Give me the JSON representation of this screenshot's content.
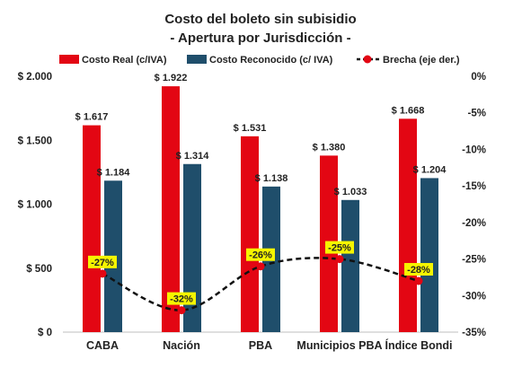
{
  "chart_data": {
    "type": "bar",
    "title": "Costo del boleto sin subisidio",
    "subtitle": "- Apertura por Jurisdicción -",
    "categories": [
      "CABA",
      "Nación",
      "PBA",
      "Municipios PBA",
      "Índice Bondi"
    ],
    "series": [
      {
        "name": "Costo Real (c/IVA)",
        "type": "bar",
        "axis": "left",
        "color": "#e30613",
        "values": [
          1617,
          1922,
          1531,
          1380,
          1668
        ],
        "labels": [
          "$ 1.617",
          "$ 1.922",
          "$ 1.531",
          "$ 1.380",
          "$ 1.668"
        ]
      },
      {
        "name": "Costo Reconocido (c/ IVA)",
        "type": "bar",
        "axis": "left",
        "color": "#1f4e6b",
        "values": [
          1184,
          1314,
          1138,
          1033,
          1204
        ],
        "labels": [
          "$ 1.184",
          "$ 1.314",
          "$ 1.138",
          "$ 1.033",
          "$ 1.204"
        ]
      },
      {
        "name": "Brecha (eje der.)",
        "type": "line",
        "axis": "right",
        "color": "#111111",
        "marker_color": "#e30613",
        "label_bg": "#f5f500",
        "values": [
          -27,
          -32,
          -26,
          -25,
          -28
        ],
        "labels": [
          "-27%",
          "-32%",
          "-26%",
          "-25%",
          "-28%"
        ]
      }
    ],
    "y_left": {
      "min": 0,
      "max": 2000,
      "ticks": [
        0,
        500,
        1000,
        1500,
        2000
      ],
      "tick_labels": [
        "$ 0",
        "$ 500",
        "$ 1.000",
        "$ 1.500",
        "$ 2.000"
      ]
    },
    "y_right": {
      "min": -35,
      "max": 0,
      "ticks": [
        0,
        -5,
        -10,
        -15,
        -20,
        -25,
        -30,
        -35
      ],
      "tick_labels": [
        "0%",
        "-5%",
        "-10%",
        "-15%",
        "-20%",
        "-25%",
        "-30%",
        "-35%"
      ]
    },
    "grid": false,
    "legend": "top"
  }
}
